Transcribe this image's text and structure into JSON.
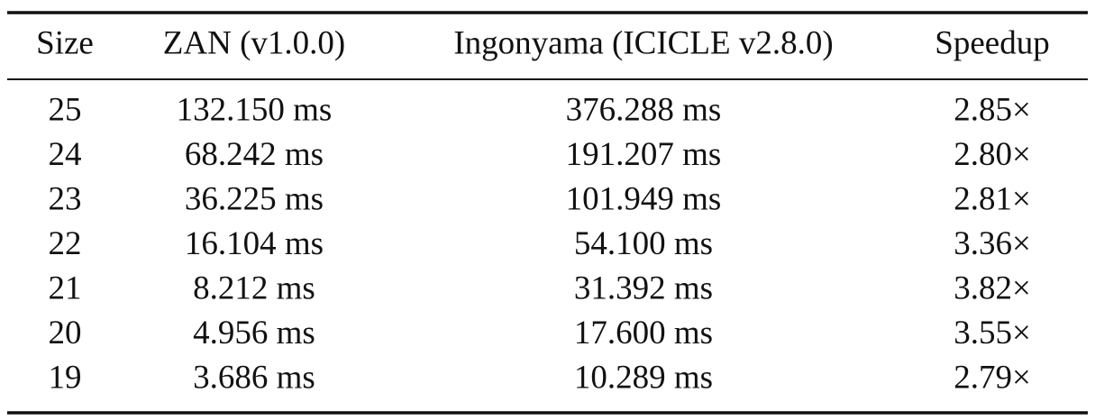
{
  "table": {
    "headers": [
      "Size",
      "ZAN (v1.0.0)",
      "Ingonyama (ICICLE v2.8.0)",
      "Speedup"
    ],
    "rows": [
      [
        "25",
        "132.150 ms",
        "376.288 ms",
        "2.85×"
      ],
      [
        "24",
        "68.242 ms",
        "191.207 ms",
        "2.80×"
      ],
      [
        "23",
        "36.225 ms",
        "101.949 ms",
        "2.81×"
      ],
      [
        "22",
        "16.104 ms",
        "54.100 ms",
        "3.36×"
      ],
      [
        "21",
        "8.212 ms",
        "31.392 ms",
        "3.82×"
      ],
      [
        "20",
        "4.956 ms",
        "17.600 ms",
        "3.55×"
      ],
      [
        "19",
        "3.686 ms",
        "10.289 ms",
        "2.79×"
      ]
    ]
  }
}
